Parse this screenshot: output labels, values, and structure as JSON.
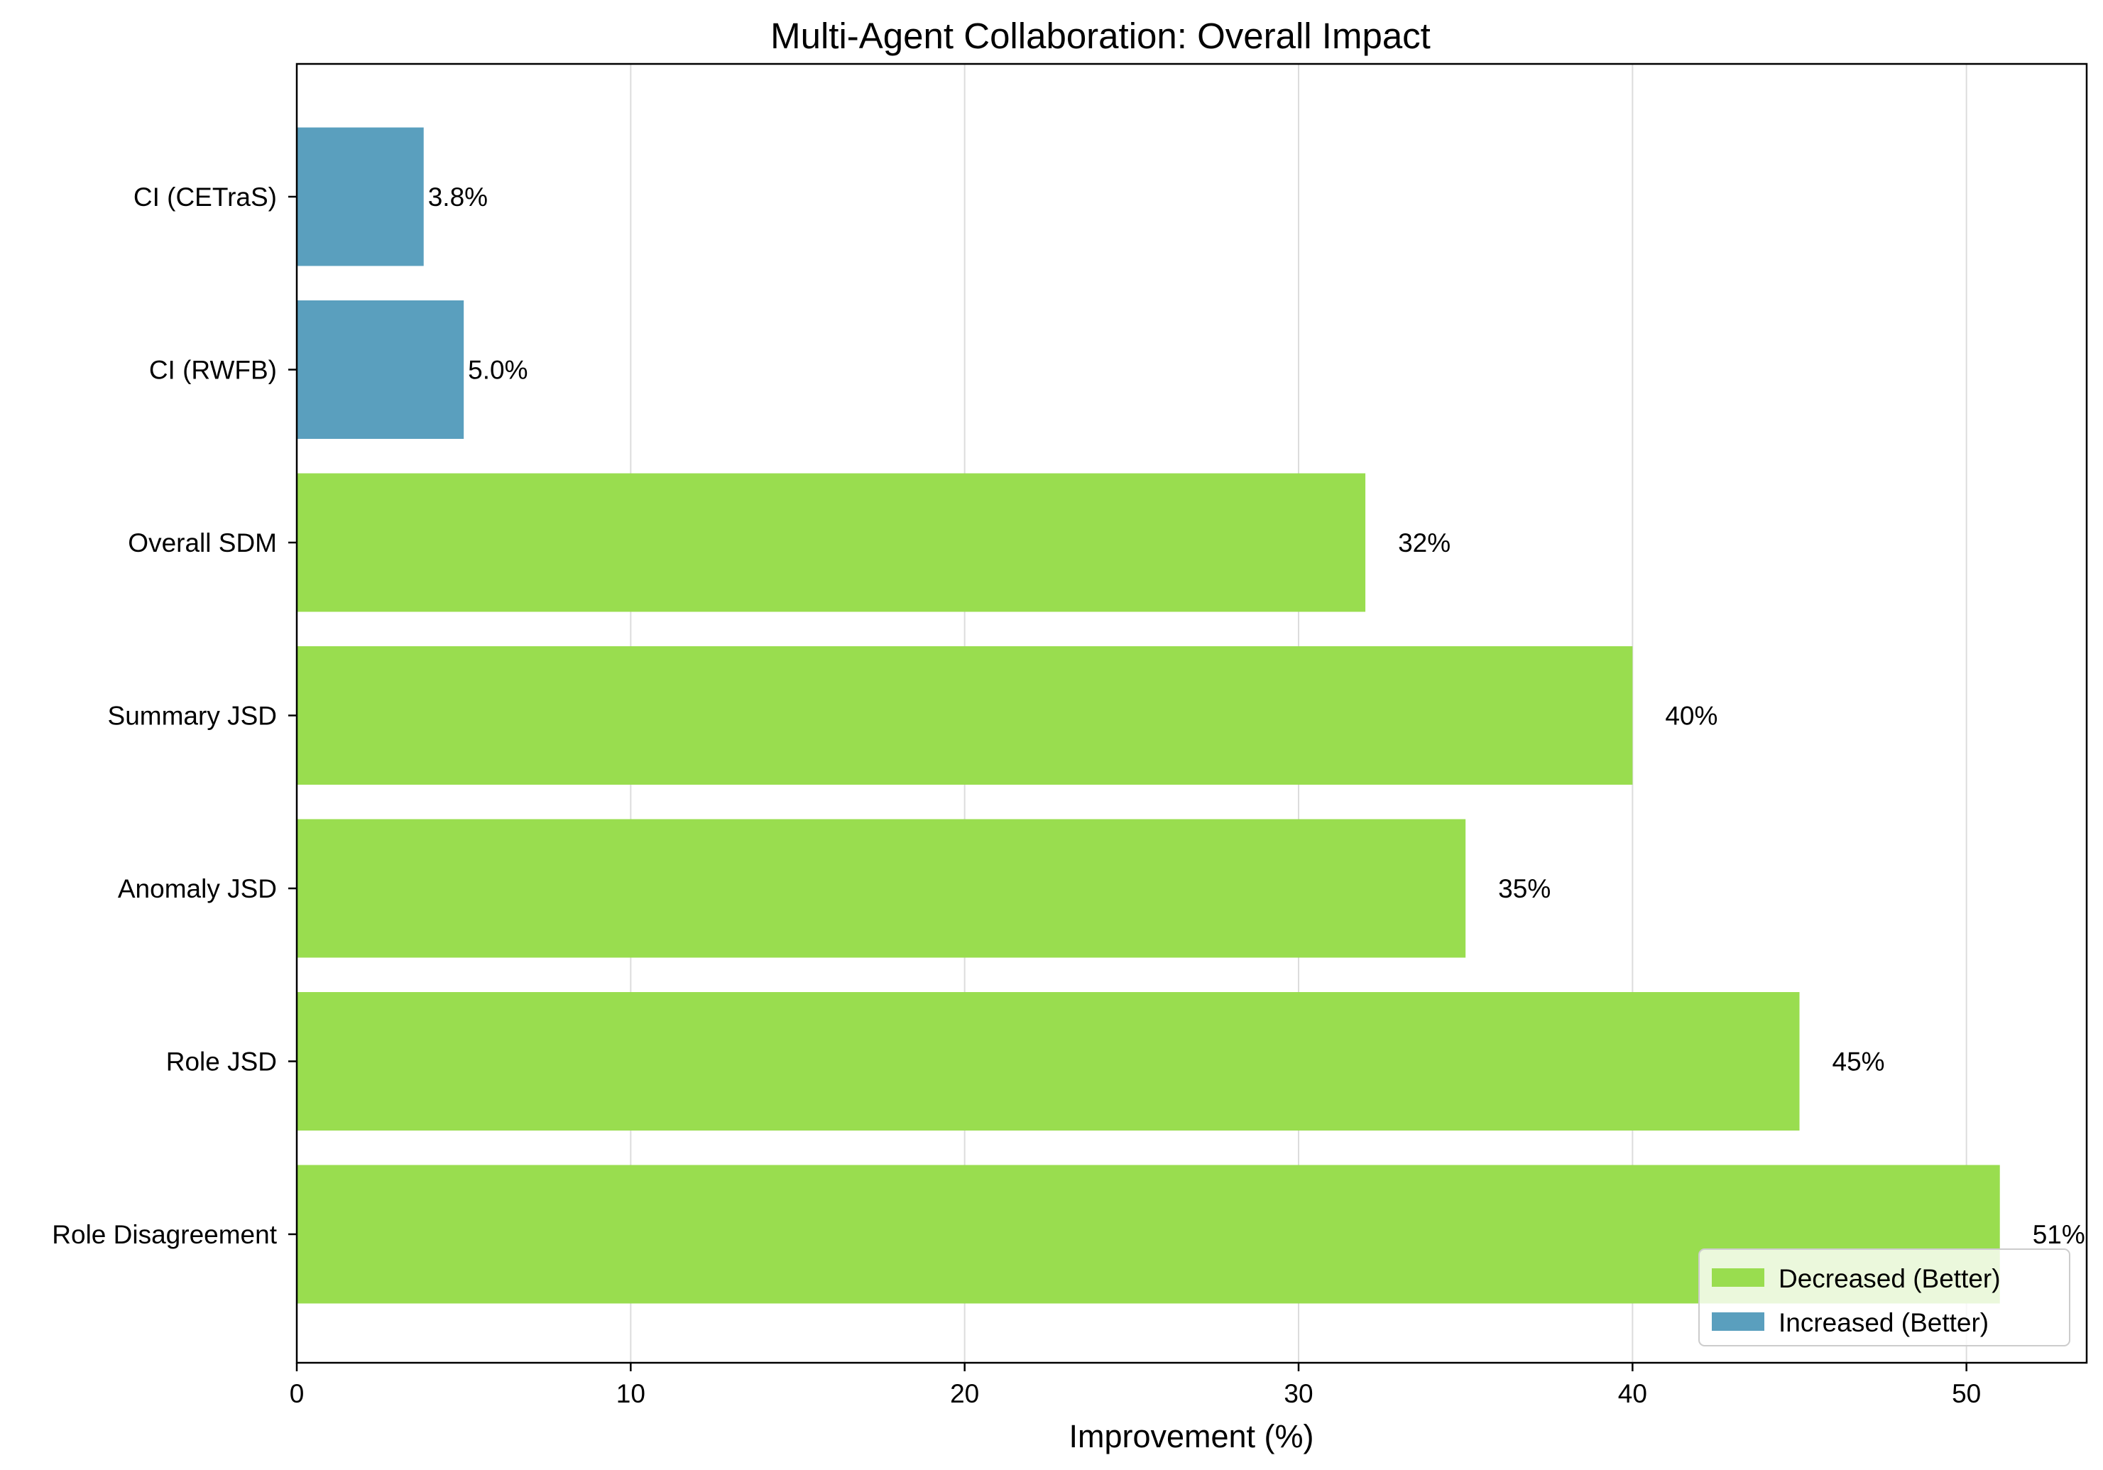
{
  "chart_data": {
    "type": "bar",
    "orientation": "horizontal",
    "title": "Multi-Agent Collaboration: Overall Impact",
    "xlabel": "Improvement (%)",
    "ylabel": "",
    "xlim": [
      0,
      53.6
    ],
    "xticks": [
      0,
      10,
      20,
      30,
      40,
      50
    ],
    "grid": "x",
    "categories": [
      "CI (CETraS)",
      "CI (RWFB)",
      "Overall SDM",
      "Summary JSD",
      "Anomaly JSD",
      "Role JSD",
      "Role Disagreement"
    ],
    "values": [
      3.8,
      5.0,
      32,
      40,
      35,
      45,
      51
    ],
    "value_labels": [
      "3.8%",
      "5.0%",
      "32%",
      "40%",
      "35%",
      "45%",
      "51%"
    ],
    "bar_groups": [
      "increased",
      "increased",
      "decreased",
      "decreased",
      "decreased",
      "decreased",
      "decreased"
    ],
    "legend": {
      "location": "lower right",
      "entries": [
        {
          "key": "decreased",
          "label": "Decreased (Better)",
          "color": "#99dd4f"
        },
        {
          "key": "increased",
          "label": "Increased (Better)",
          "color": "#5a9fbe"
        }
      ]
    }
  }
}
